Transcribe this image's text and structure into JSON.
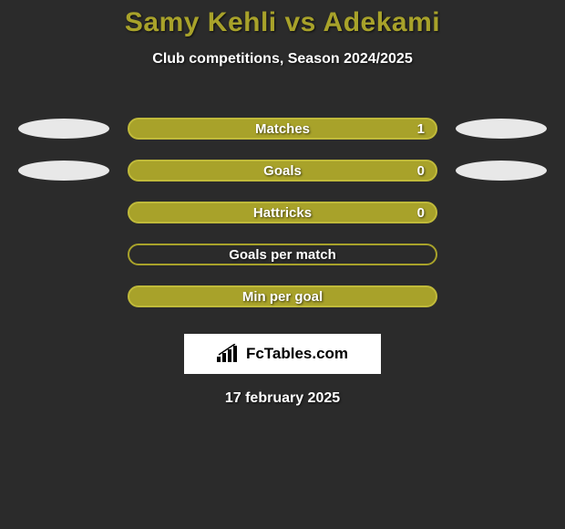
{
  "background_color": "#2b2b2b",
  "title": {
    "text": "Samy Kehli vs Adekami",
    "color": "#a8a22a",
    "fontsize": 30
  },
  "subtitle": {
    "text": "Club competitions, Season 2024/2025",
    "color": "#ffffff",
    "fontsize": 16
  },
  "rows": [
    {
      "label": "Matches",
      "value": "1",
      "pill_color": "#a8a22a",
      "pill_border": "#c0ba3a",
      "left_ellipse_color": "#e8e8e8",
      "right_ellipse_color": "#e8e8e8",
      "show_left": true,
      "show_right": true,
      "show_value": true
    },
    {
      "label": "Goals",
      "value": "0",
      "pill_color": "#a8a22a",
      "pill_border": "#c0ba3a",
      "left_ellipse_color": "#e8e8e8",
      "right_ellipse_color": "#e8e8e8",
      "show_left": true,
      "show_right": true,
      "show_value": true
    },
    {
      "label": "Hattricks",
      "value": "0",
      "pill_color": "#a8a22a",
      "pill_border": "#c0ba3a",
      "left_ellipse_color": "",
      "right_ellipse_color": "",
      "show_left": false,
      "show_right": false,
      "show_value": true
    },
    {
      "label": "Goals per match",
      "value": "",
      "pill_color": "transparent",
      "pill_border": "#a8a22a",
      "left_ellipse_color": "",
      "right_ellipse_color": "",
      "show_left": false,
      "show_right": false,
      "show_value": false
    },
    {
      "label": "Min per goal",
      "value": "",
      "pill_color": "#a8a22a",
      "pill_border": "#c0ba3a",
      "left_ellipse_color": "",
      "right_ellipse_color": "",
      "show_left": false,
      "show_right": false,
      "show_value": false
    }
  ],
  "logo": {
    "text": "FcTables.com",
    "text_color": "#000000",
    "box_bg": "#ffffff"
  },
  "date": {
    "text": "17 february 2025",
    "color": "#ffffff"
  }
}
